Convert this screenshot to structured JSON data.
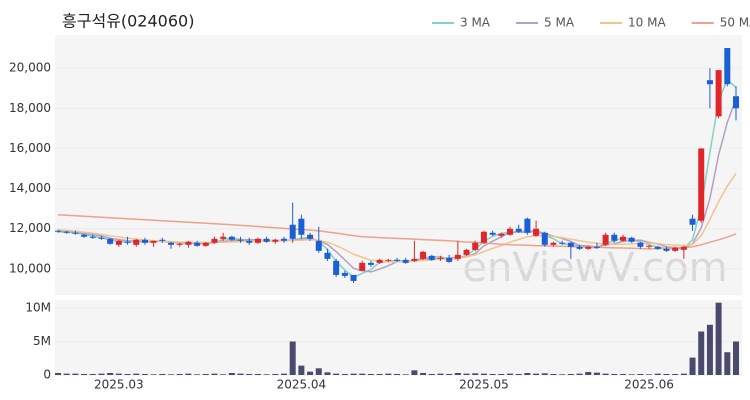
{
  "chart_data": {
    "type": "candlestick",
    "title": "흥구석유(024060)",
    "watermark": "enViewV.com",
    "categories": [
      null,
      null,
      null,
      null,
      null,
      null,
      null,
      "2025.03",
      null,
      null,
      null,
      null,
      null,
      null,
      null,
      null,
      null,
      null,
      null,
      null,
      null,
      null,
      null,
      null,
      null,
      null,
      null,
      null,
      "2025.04",
      null,
      null,
      null,
      null,
      null,
      null,
      null,
      null,
      null,
      null,
      null,
      null,
      null,
      null,
      null,
      null,
      null,
      null,
      null,
      null,
      "2025.05",
      null,
      null,
      null,
      null,
      null,
      null,
      null,
      null,
      null,
      null,
      null,
      null,
      null,
      null,
      null,
      null,
      null,
      null,
      "2025.06",
      null,
      null,
      null,
      null,
      null,
      null,
      null,
      null,
      null,
      null
    ],
    "open": [
      11900,
      11850,
      11800,
      11700,
      11600,
      11550,
      11500,
      11200,
      11350,
      11200,
      11450,
      11300,
      11450,
      11300,
      11200,
      11200,
      11300,
      11150,
      11300,
      11500,
      11600,
      11450,
      11400,
      11300,
      11500,
      11350,
      11500,
      12200,
      12500,
      11700,
      11400,
      10800,
      10400,
      9800,
      9700,
      9900,
      10300,
      10300,
      10400,
      10450,
      10450,
      10400,
      10500,
      10650,
      10500,
      10550,
      10500,
      10700,
      10950,
      11300,
      11800,
      11650,
      11700,
      12000,
      12500,
      11650,
      11800,
      11200,
      11300,
      11300,
      11100,
      11000,
      11100,
      11200,
      11700,
      11400,
      11550,
      11300,
      11100,
      11100,
      11000,
      10900,
      10950,
      12500,
      12400,
      19400,
      17600,
      21000,
      18600
    ],
    "high": [
      11950,
      11900,
      11900,
      11750,
      11700,
      11650,
      11550,
      11450,
      11600,
      11500,
      11550,
      11400,
      11550,
      11350,
      11300,
      11400,
      11400,
      11350,
      11600,
      11800,
      11650,
      11600,
      11550,
      11550,
      11600,
      11500,
      11600,
      13300,
      12700,
      11800,
      12100,
      11000,
      10500,
      9900,
      9700,
      10400,
      10400,
      10500,
      10500,
      10550,
      10550,
      11400,
      10900,
      10700,
      10650,
      10700,
      11400,
      11000,
      11400,
      11900,
      11900,
      11800,
      12100,
      12200,
      12550,
      12400,
      11850,
      11350,
      11400,
      11350,
      11200,
      11150,
      11300,
      11800,
      11800,
      11700,
      11600,
      11350,
      11200,
      11150,
      11100,
      11100,
      11150,
      12700,
      16000,
      20000,
      19900,
      21000,
      19100
    ],
    "low": [
      11800,
      11750,
      11700,
      11550,
      11500,
      11450,
      11200,
      11100,
      11200,
      11100,
      11200,
      11100,
      11300,
      11000,
      11100,
      11050,
      11100,
      11100,
      11250,
      11400,
      11400,
      11300,
      11200,
      11250,
      11300,
      11250,
      11300,
      11300,
      11500,
      11400,
      10800,
      10400,
      9600,
      9550,
      9300,
      9900,
      10100,
      10250,
      10350,
      10350,
      10250,
      10350,
      10450,
      10400,
      10400,
      10300,
      10400,
      10650,
      10900,
      11250,
      11650,
      11550,
      11650,
      11800,
      11700,
      11600,
      11100,
      11100,
      11200,
      10500,
      10950,
      10950,
      11000,
      11150,
      11300,
      11350,
      11300,
      11000,
      11000,
      10950,
      10850,
      10850,
      10500,
      11900,
      12300,
      18000,
      17500,
      19100,
      17400
    ],
    "close": [
      11850,
      11800,
      11750,
      11600,
      11550,
      11500,
      11250,
      11400,
      11300,
      11450,
      11300,
      11400,
      11400,
      11200,
      11250,
      11350,
      11150,
      11300,
      11500,
      11600,
      11450,
      11400,
      11300,
      11500,
      11350,
      11450,
      11400,
      11500,
      11700,
      11500,
      10900,
      10500,
      9700,
      9650,
      9400,
      10300,
      10200,
      10450,
      10450,
      10400,
      10300,
      10500,
      10850,
      10450,
      10550,
      10350,
      10700,
      10950,
      11300,
      11850,
      11700,
      11750,
      12000,
      11850,
      11800,
      12000,
      11200,
      11300,
      11250,
      11100,
      11000,
      11100,
      11050,
      11700,
      11400,
      11600,
      11350,
      11100,
      11150,
      11000,
      10900,
      11050,
      11100,
      12200,
      16000,
      19200,
      19900,
      19200,
      18000
    ],
    "up_color": "#e0262a",
    "down_color": "#1a5fd6",
    "series": [
      {
        "name": "3 MA",
        "color": "#7fd3c8",
        "values": [
          11850,
          11820,
          11800,
          11720,
          11630,
          11550,
          11430,
          11380,
          11320,
          11380,
          11350,
          11380,
          11370,
          11330,
          11280,
          11270,
          11250,
          11270,
          11320,
          11470,
          11520,
          11480,
          11380,
          11400,
          11380,
          11430,
          11400,
          11450,
          11530,
          11570,
          11370,
          10970,
          10370,
          9950,
          9580,
          9780,
          9970,
          10320,
          10370,
          10430,
          10380,
          10400,
          10550,
          10600,
          10620,
          10450,
          10530,
          10670,
          10980,
          11370,
          11620,
          11770,
          11820,
          11870,
          11880,
          11880,
          11670,
          11500,
          11250,
          11220,
          11120,
          11070,
          11050,
          11280,
          11380,
          11570,
          11450,
          11350,
          11200,
          11080,
          11020,
          10980,
          11020,
          11450,
          13100,
          15800,
          18370,
          19430,
          19030
        ]
      },
      {
        "name": "5 MA",
        "color": "#b59fc4",
        "values": [
          11900,
          11870,
          11830,
          11760,
          11710,
          11640,
          11530,
          11460,
          11400,
          11380,
          11340,
          11370,
          11370,
          11350,
          11310,
          11320,
          11270,
          11250,
          11310,
          11380,
          11400,
          11450,
          11450,
          11450,
          11400,
          11400,
          11400,
          11440,
          11480,
          11510,
          11400,
          11220,
          10860,
          10450,
          10030,
          9910,
          9850,
          9990,
          10160,
          10360,
          10360,
          10420,
          10500,
          10500,
          10530,
          10540,
          10580,
          10600,
          10770,
          11150,
          11380,
          11600,
          11820,
          11830,
          11820,
          11880,
          11770,
          11630,
          11510,
          11370,
          11170,
          11150,
          11100,
          11190,
          11250,
          11370,
          11420,
          11430,
          11320,
          11240,
          11100,
          11060,
          11040,
          11250,
          12050,
          13510,
          15680,
          17300,
          18460
        ]
      },
      {
        "name": "10 MA",
        "color": "#f2c48e",
        "values": [
          11950,
          11920,
          11880,
          11830,
          11780,
          11720,
          11650,
          11590,
          11530,
          11480,
          11440,
          11400,
          11380,
          11360,
          11340,
          11330,
          11320,
          11310,
          11320,
          11330,
          11340,
          11360,
          11380,
          11400,
          11410,
          11410,
          11410,
          11420,
          11430,
          11450,
          11420,
          11330,
          11160,
          10960,
          10730,
          10580,
          10430,
          10380,
          10350,
          10350,
          10360,
          10380,
          10420,
          10450,
          10480,
          10500,
          10540,
          10600,
          10700,
          10860,
          11020,
          11170,
          11330,
          11470,
          11600,
          11650,
          11650,
          11620,
          11560,
          11480,
          11400,
          11330,
          11270,
          11240,
          11220,
          11230,
          11250,
          11270,
          11270,
          11260,
          11210,
          11190,
          11160,
          11220,
          11650,
          12470,
          13350,
          14120,
          14750
        ]
      },
      {
        "name": "50 MA",
        "color": "#f0a08c",
        "values": [
          12700,
          12675,
          12650,
          12625,
          12600,
          12575,
          12550,
          12525,
          12500,
          12475,
          12450,
          12425,
          12400,
          12375,
          12350,
          12325,
          12300,
          12275,
          12250,
          12225,
          12200,
          12170,
          12140,
          12110,
          12080,
          12050,
          12020,
          11990,
          11960,
          11930,
          11900,
          11840,
          11780,
          11720,
          11660,
          11600,
          11580,
          11560,
          11540,
          11520,
          11500,
          11480,
          11460,
          11440,
          11420,
          11400,
          11370,
          11340,
          11320,
          11290,
          11260,
          11230,
          11200,
          11190,
          11180,
          11160,
          11150,
          11140,
          11130,
          11110,
          11100,
          11090,
          11080,
          11060,
          11050,
          11040,
          11030,
          11010,
          11000,
          11010,
          11020,
          11040,
          11050,
          11100,
          11200,
          11330,
          11450,
          11580,
          11750
        ]
      }
    ],
    "ylim": [
      8700,
      21650
    ],
    "yticks": [
      {
        "value": 10000,
        "label": "10,000"
      },
      {
        "value": 12000,
        "label": "12,000"
      },
      {
        "value": 14000,
        "label": "14,000"
      },
      {
        "value": 16000,
        "label": "16,000"
      },
      {
        "value": 18000,
        "label": "18,000"
      },
      {
        "value": 20000,
        "label": "20,000"
      }
    ],
    "legend": "top-right",
    "volume": {
      "color": "#4a4a6e",
      "values": [
        300000,
        200000,
        200000,
        150000,
        150000,
        200000,
        300000,
        200000,
        150000,
        200000,
        150000,
        100000,
        150000,
        100000,
        150000,
        200000,
        100000,
        150000,
        200000,
        100000,
        300000,
        200000,
        150000,
        150000,
        100000,
        150000,
        200000,
        5000000,
        1400000,
        500000,
        1000000,
        400000,
        200000,
        150000,
        200000,
        200000,
        150000,
        150000,
        200000,
        150000,
        100000,
        700000,
        300000,
        150000,
        200000,
        150000,
        300000,
        200000,
        250000,
        200000,
        150000,
        150000,
        200000,
        150000,
        300000,
        200000,
        250000,
        150000,
        100000,
        150000,
        200000,
        450000,
        350000,
        200000,
        150000,
        150000,
        100000,
        150000,
        100000,
        200000,
        150000,
        150000,
        200000,
        2600000,
        6500000,
        7500000,
        10800000,
        3400000,
        5000000
      ],
      "ylim": [
        0,
        11200000
      ],
      "yticks": [
        {
          "value": 0,
          "label": "0"
        },
        {
          "value": 5000000,
          "label": "5M"
        },
        {
          "value": 10000000,
          "label": "10M"
        }
      ]
    }
  }
}
